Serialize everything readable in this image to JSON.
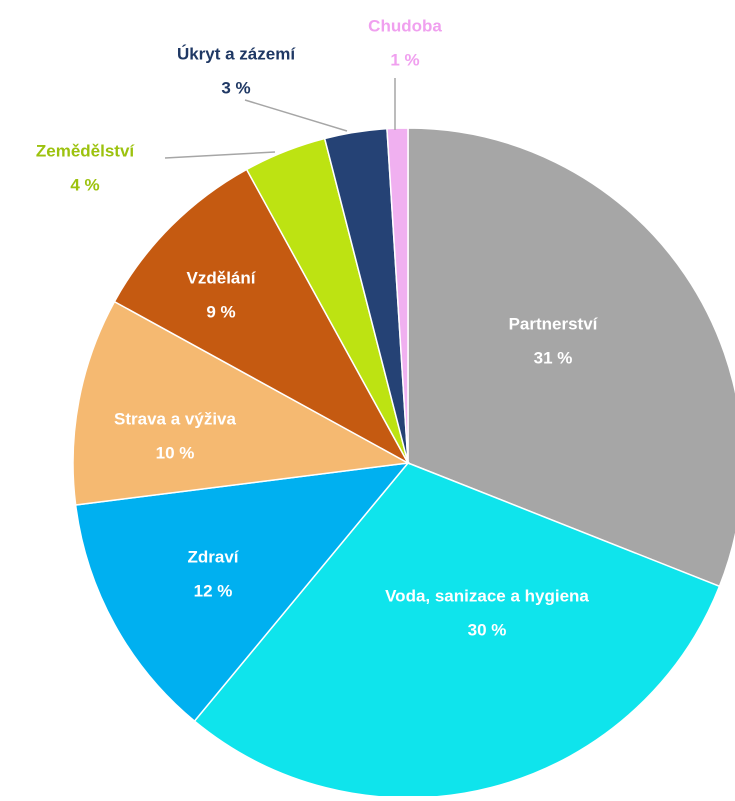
{
  "chart_data": {
    "type": "pie",
    "categories": [
      "Partnerství",
      "Voda, sanizace a hygiena",
      "Zdraví",
      "Strava a výživa",
      "Vzdělání",
      "Zemědělství",
      "Úkryt a zázemí",
      "Chudoba"
    ],
    "values": [
      31,
      30,
      12,
      10,
      9,
      4,
      3,
      1
    ],
    "value_labels": [
      "31 %",
      "30 %",
      "12 %",
      "10 %",
      "9 %",
      "4 %",
      "3 %",
      "1 %"
    ],
    "colors": [
      "#a6a6a6",
      "#0fe4ec",
      "#00b0f0",
      "#f5b971",
      "#c55a11",
      "#bde312",
      "#254275",
      "#f0b0f0"
    ],
    "label_colors": [
      "#ffffff",
      "#ffffff",
      "#ffffff",
      "#ffffff",
      "#ffffff",
      "#9cc20e",
      "#1f3864",
      "#f0a0ef"
    ]
  }
}
